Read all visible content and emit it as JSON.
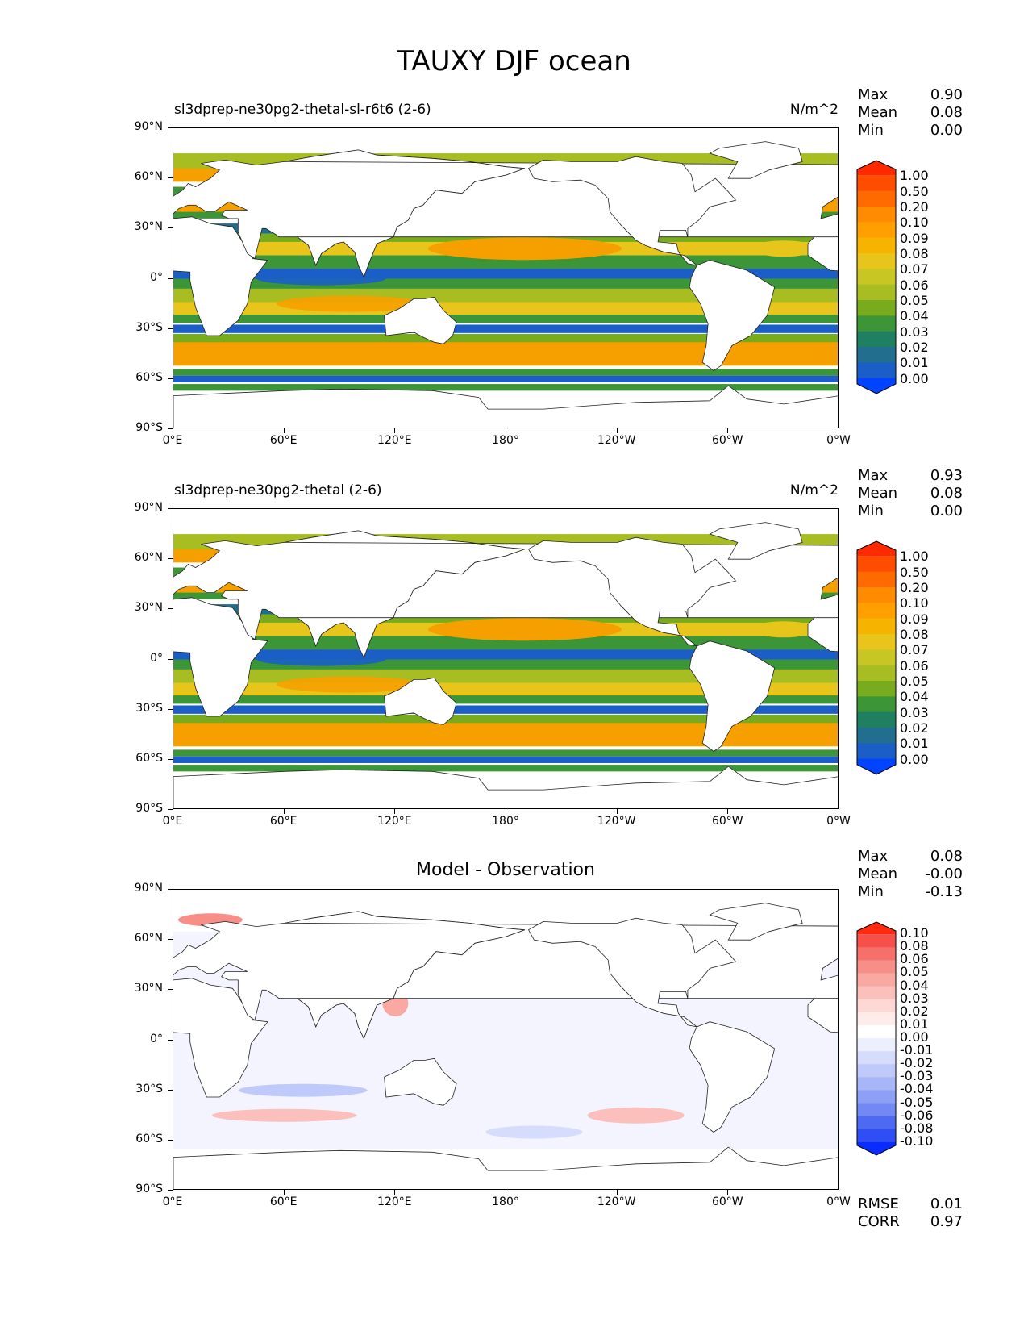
{
  "title": "TAUXY DJF ocean",
  "axes": {
    "y_ticks": [
      "90°N",
      "60°N",
      "30°N",
      "0°",
      "30°S",
      "60°S",
      "90°S"
    ],
    "x_ticks": [
      "0°E",
      "60°E",
      "120°E",
      "180°",
      "120°W",
      "60°W",
      "0°W"
    ]
  },
  "panels": [
    {
      "title_left": "sl3dprep-ne30pg2-thetal-sl-r6t6 (2-6)",
      "title_center": "",
      "units": "N/m^2",
      "stats": {
        "max_label": "Max",
        "max": "0.90",
        "mean_label": "Mean",
        "mean": "0.08",
        "min_label": "Min",
        "min": "0.00"
      },
      "colorbar": {
        "labels": [
          "1.00",
          "0.50",
          "0.20",
          "0.10",
          "0.09",
          "0.08",
          "0.07",
          "0.06",
          "0.05",
          "0.04",
          "0.03",
          "0.02",
          "0.01",
          "0.00"
        ],
        "colors": [
          "#ff2a00",
          "#ff4d00",
          "#ff6a00",
          "#ff8c00",
          "#ffa000",
          "#f6b400",
          "#e8c51a",
          "#c8c622",
          "#a8bd22",
          "#78ab1e",
          "#3c9638",
          "#1e8060",
          "#226e8e",
          "#1b5ec8",
          "#0044ff"
        ]
      }
    },
    {
      "title_left": "sl3dprep-ne30pg2-thetal (2-6)",
      "title_center": "",
      "units": "N/m^2",
      "stats": {
        "max_label": "Max",
        "max": "0.93",
        "mean_label": "Mean",
        "mean": "0.08",
        "min_label": "Min",
        "min": "0.00"
      },
      "colorbar": {
        "labels": [
          "1.00",
          "0.50",
          "0.20",
          "0.10",
          "0.09",
          "0.08",
          "0.07",
          "0.06",
          "0.05",
          "0.04",
          "0.03",
          "0.02",
          "0.01",
          "0.00"
        ],
        "colors": [
          "#ff2a00",
          "#ff4d00",
          "#ff6a00",
          "#ff8c00",
          "#ffa000",
          "#f6b400",
          "#e8c51a",
          "#c8c622",
          "#a8bd22",
          "#78ab1e",
          "#3c9638",
          "#1e8060",
          "#226e8e",
          "#1b5ec8",
          "#0044ff"
        ]
      }
    },
    {
      "title_left": "",
      "title_center": "Model - Observation",
      "units": "",
      "stats": {
        "max_label": "Max",
        "max": "0.08",
        "mean_label": "Mean",
        "mean": "-0.00",
        "min_label": "Min",
        "min": "-0.13"
      },
      "colorbar": {
        "labels": [
          "0.10",
          "0.08",
          "0.06",
          "0.05",
          "0.04",
          "0.03",
          "0.02",
          "0.01",
          "0.00",
          "-0.01",
          "-0.02",
          "-0.03",
          "-0.04",
          "-0.05",
          "-0.06",
          "-0.08",
          "-0.10"
        ],
        "colors": [
          "#ff2a10",
          "#f6504a",
          "#f5706a",
          "#f78e88",
          "#f9a8a2",
          "#fbc0bb",
          "#fdd8d4",
          "#feecea",
          "#ffffff",
          "#eceffe",
          "#d6ddfc",
          "#c0cafa",
          "#a8b6f8",
          "#8ea0f5",
          "#7288f2",
          "#4e6af3",
          "#2f4ef5",
          "#0a2cff"
        ]
      },
      "rmse_label": "RMSE",
      "rmse": "0.01",
      "corr_label": "CORR",
      "corr": "0.97"
    }
  ]
}
